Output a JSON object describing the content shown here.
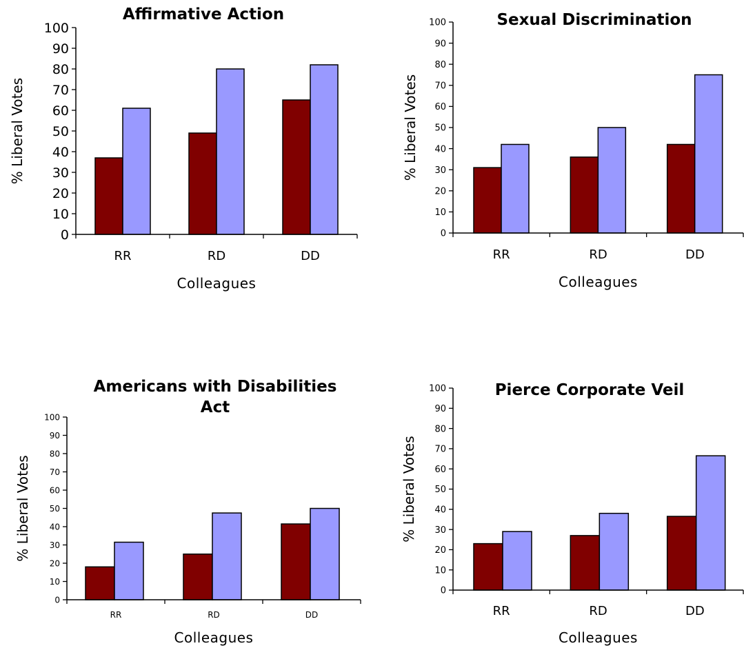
{
  "colors": {
    "series_a": "#800000",
    "series_b": "#9999ff",
    "stroke": "#000000"
  },
  "chart_data": [
    {
      "type": "bar",
      "title": [
        "Affirmative Action"
      ],
      "xlabel": "Colleagues",
      "ylabel": "% Liberal Votes",
      "categories": [
        "RR",
        "RD",
        "DD"
      ],
      "ylim": [
        0,
        100
      ],
      "yticks": [
        0,
        10,
        20,
        30,
        40,
        50,
        60,
        70,
        80,
        90,
        100
      ],
      "series": [
        {
          "values": [
            37,
            49,
            65
          ]
        },
        {
          "values": [
            61,
            80,
            82
          ]
        }
      ]
    },
    {
      "type": "bar",
      "title": [
        "Sexual Discrimination"
      ],
      "xlabel": "Colleagues",
      "ylabel": "% Liberal Votes",
      "categories": [
        "RR",
        "RD",
        "DD"
      ],
      "ylim": [
        0,
        100
      ],
      "yticks": [
        0,
        10,
        20,
        30,
        40,
        50,
        60,
        70,
        80,
        90,
        100
      ],
      "series": [
        {
          "values": [
            31,
            36,
            42
          ]
        },
        {
          "values": [
            42,
            50,
            75
          ]
        }
      ]
    },
    {
      "type": "bar",
      "title": [
        "Americans with Disabilities",
        "Act"
      ],
      "xlabel": "Colleagues",
      "ylabel": "% Liberal Votes",
      "categories": [
        "RR",
        "RD",
        "DD"
      ],
      "ylim": [
        0,
        100
      ],
      "yticks": [
        0,
        10,
        20,
        30,
        40,
        50,
        60,
        70,
        80,
        90,
        100
      ],
      "series": [
        {
          "values": [
            18,
            25,
            41.5
          ]
        },
        {
          "values": [
            31.5,
            47.5,
            50
          ]
        }
      ]
    },
    {
      "type": "bar",
      "title": [
        "Pierce Corporate Veil"
      ],
      "xlabel": "Colleagues",
      "ylabel": "% Liberal Votes",
      "categories": [
        "RR",
        "RD",
        "DD"
      ],
      "ylim": [
        0,
        100
      ],
      "yticks": [
        0,
        10,
        20,
        30,
        40,
        50,
        60,
        70,
        80,
        90,
        100
      ],
      "series": [
        {
          "values": [
            23,
            27,
            36.5
          ]
        },
        {
          "values": [
            29,
            38,
            66.5
          ]
        }
      ]
    }
  ]
}
